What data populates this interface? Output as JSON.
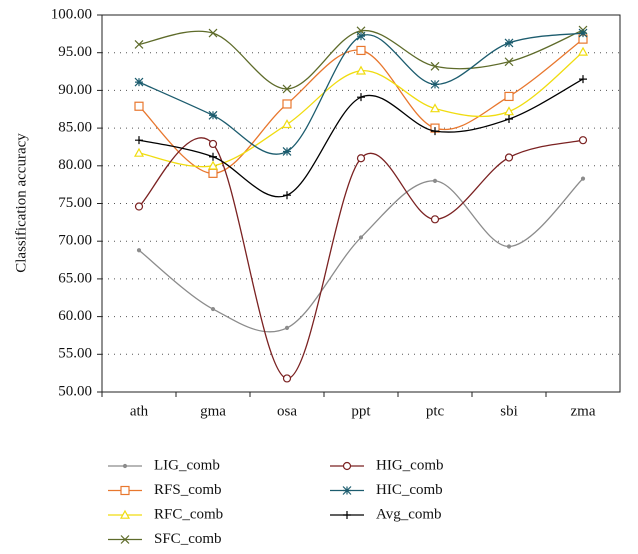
{
  "chart_data": {
    "type": "line",
    "y_label": "Classification accuracy",
    "categories": [
      "ath",
      "gma",
      "osa",
      "ppt",
      "ptc",
      "sbi",
      "zma"
    ],
    "ylim": [
      50,
      100
    ],
    "yticks": [
      {
        "value": 50,
        "label": "50.00"
      },
      {
        "value": 55,
        "label": "55.00"
      },
      {
        "value": 60,
        "label": "60.00"
      },
      {
        "value": 65,
        "label": "65.00"
      },
      {
        "value": 70,
        "label": "70.00"
      },
      {
        "value": 75,
        "label": "75.00"
      },
      {
        "value": 80,
        "label": "80.00"
      },
      {
        "value": 85,
        "label": "85.00"
      },
      {
        "value": 90,
        "label": "90.00"
      },
      {
        "value": 95,
        "label": "95.00"
      },
      {
        "value": 100,
        "label": "100.00"
      }
    ],
    "grid": true,
    "smooth": true,
    "legend": "bottom",
    "series": [
      {
        "name": "LIG_comb",
        "color": "#8c8c8c",
        "marker": "dot",
        "values": [
          68.8,
          61.0,
          58.5,
          70.5,
          78.0,
          69.3,
          78.3
        ]
      },
      {
        "name": "RFS_comb",
        "color": "#e8772e",
        "marker": "square",
        "values": [
          87.9,
          79.0,
          88.2,
          95.3,
          85.0,
          89.2,
          96.8
        ]
      },
      {
        "name": "RFC_comb",
        "color": "#f0dc10",
        "marker": "triangle",
        "values": [
          81.7,
          80.0,
          85.5,
          92.6,
          87.6,
          87.2,
          95.1
        ]
      },
      {
        "name": "SFC_comb",
        "color": "#5e6b2a",
        "marker": "x",
        "values": [
          96.1,
          97.6,
          90.2,
          97.9,
          93.2,
          93.8,
          98.0
        ]
      },
      {
        "name": "HIG_comb",
        "color": "#7b2222",
        "marker": "circle",
        "values": [
          74.6,
          82.9,
          51.8,
          81.0,
          72.9,
          81.1,
          83.4
        ]
      },
      {
        "name": "HIC_comb",
        "color": "#1c5c6e",
        "marker": "asterisk",
        "values": [
          91.1,
          86.7,
          81.9,
          97.2,
          90.8,
          96.3,
          97.6
        ]
      },
      {
        "name": "Avg_comb",
        "color": "#000000",
        "marker": "plus",
        "values": [
          83.4,
          81.2,
          76.1,
          89.1,
          84.6,
          86.2,
          91.5
        ]
      }
    ]
  }
}
